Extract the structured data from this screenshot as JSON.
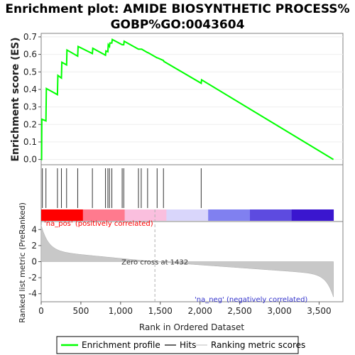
{
  "chart_data": {
    "title_line1": "Enrichment plot: AMIDE BIOSYNTHETIC PROCESS%",
    "title_line2": "GOBP%GO:0043604",
    "es_panel": {
      "type": "line",
      "ylabel": "Enrichment score (ES)",
      "ylim": [
        -0.03,
        0.72
      ],
      "yticks": [
        "0.0",
        "0.1",
        "0.2",
        "0.3",
        "0.4",
        "0.5",
        "0.6",
        "0.7"
      ],
      "series": [
        {
          "name": "Enrichment profile",
          "color": "#00ff00",
          "points": [
            [
              0,
              0
            ],
            [
              5,
              0
            ],
            [
              8,
              0.23
            ],
            [
              60,
              0.22
            ],
            [
              65,
              0.405
            ],
            [
              205,
              0.37
            ],
            [
              210,
              0.48
            ],
            [
              255,
              0.465
            ],
            [
              260,
              0.555
            ],
            [
              320,
              0.54
            ],
            [
              325,
              0.625
            ],
            [
              460,
              0.59
            ],
            [
              465,
              0.645
            ],
            [
              645,
              0.605
            ],
            [
              650,
              0.635
            ],
            [
              810,
              0.595
            ],
            [
              815,
              0.62
            ],
            [
              840,
              0.615
            ],
            [
              845,
              0.655
            ],
            [
              860,
              0.645
            ],
            [
              865,
              0.665
            ],
            [
              890,
              0.665
            ],
            [
              895,
              0.685
            ],
            [
              1020,
              0.655
            ],
            [
              1025,
              0.655
            ],
            [
              1040,
              0.655
            ],
            [
              1045,
              0.675
            ],
            [
              1225,
              0.63
            ],
            [
              1230,
              0.63
            ],
            [
              1260,
              0.63
            ],
            [
              1265,
              0.63
            ],
            [
              1340,
              0.61
            ],
            [
              1345,
              0.61
            ],
            [
              1460,
              0.58
            ],
            [
              1465,
              0.58
            ],
            [
              1540,
              0.565
            ],
            [
              1545,
              0.56
            ],
            [
              2015,
              0.435
            ],
            [
              2020,
              0.455
            ],
            [
              3680,
              0
            ]
          ]
        }
      ]
    },
    "hits": [
      15,
      60,
      205,
      255,
      320,
      460,
      645,
      810,
      840,
      860,
      890,
      1020,
      1040,
      1225,
      1260,
      1340,
      1460,
      1540,
      2015
    ],
    "heatmap": {
      "label_pos": "'na_pos' (positively correlated)",
      "label_neg": "'na_neg' (negatively correlated)",
      "colors": [
        "#ff0000",
        "#ff7a8e",
        "#fabfde",
        "#d9d6fb",
        "#8080f0",
        "#5d4be0",
        "#3a16cf"
      ]
    },
    "ranked_metric": {
      "ylabel": "Ranked list metric (PreRanked)",
      "ylim": [
        -5,
        5
      ],
      "yticks": [
        "-4",
        "-2",
        "0",
        "2",
        "4"
      ],
      "fill_color": "#c8c8c8",
      "zero_cross_label": "Zero cross at 1432",
      "zero_cross": 1432
    },
    "x_axis": {
      "xlabel": "Rank in Ordered Dataset",
      "xlim": [
        0,
        3800
      ],
      "xticks": [
        "0",
        "500",
        "1,000",
        "1,500",
        "2,000",
        "2,500",
        "3,000",
        "3,500"
      ],
      "max_rank": 3680
    },
    "legend": {
      "items": [
        {
          "label": "Enrichment profile",
          "color": "#00ff00"
        },
        {
          "label": "Hits",
          "color": "#888888"
        },
        {
          "label": "Ranking metric scores",
          "color": "#dddddd"
        }
      ],
      "placement": "bottom"
    }
  }
}
